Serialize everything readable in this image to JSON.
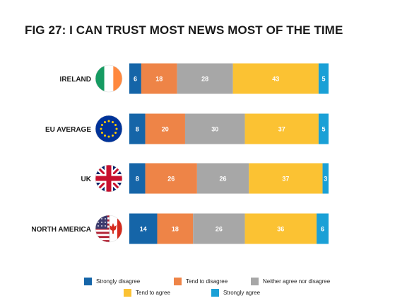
{
  "title": "FIG 27: I CAN TRUST MOST NEWS MOST OF THE TIME",
  "colors": {
    "strongly_disagree": "#1565a8",
    "tend_to_disagree": "#ee8447",
    "neither": "#a7a7a7",
    "tend_to_agree": "#fbc233",
    "strongly_agree": "#1aa0d6"
  },
  "chart_data": {
    "type": "bar",
    "orientation": "horizontal",
    "stacked": true,
    "normalized": true,
    "title": "FIG 27: I CAN TRUST MOST NEWS MOST OF THE TIME",
    "categories": [
      "IRELAND",
      "EU AVERAGE",
      "UK",
      "NORTH AMERICA"
    ],
    "category_icons": [
      "ireland-flag-icon",
      "eu-flag-icon",
      "uk-flag-icon",
      "north-america-flags-icon"
    ],
    "series": [
      {
        "name": "Strongly disagree",
        "color": "#1565a8",
        "values": [
          6,
          8,
          8,
          14
        ]
      },
      {
        "name": "Tend to disagree",
        "color": "#ee8447",
        "values": [
          18,
          20,
          26,
          18
        ]
      },
      {
        "name": "Neither agree nor disagree",
        "color": "#a7a7a7",
        "values": [
          28,
          30,
          26,
          26
        ]
      },
      {
        "name": "Tend to agree",
        "color": "#fbc233",
        "values": [
          43,
          37,
          37,
          36
        ]
      },
      {
        "name": "Strongly agree",
        "color": "#1aa0d6",
        "values": [
          5,
          5,
          3,
          6
        ]
      }
    ],
    "data_labels": true,
    "legend_position": "bottom",
    "grid": false
  },
  "legend": [
    {
      "label": "Strongly disagree",
      "color": "#1565a8"
    },
    {
      "label": "Tend to disagree",
      "color": "#ee8447"
    },
    {
      "label": "Neither agree nor disagree",
      "color": "#a7a7a7"
    },
    {
      "label": "Tend to agree",
      "color": "#fbc233"
    },
    {
      "label": "Strongly agree",
      "color": "#1aa0d6"
    }
  ]
}
